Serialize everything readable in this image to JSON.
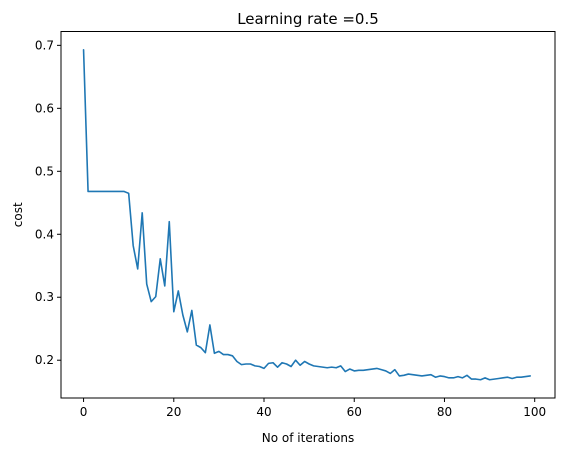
{
  "chart_data": {
    "type": "line",
    "title": "Learning rate =0.5",
    "xlabel": "No of iterations",
    "ylabel": "cost",
    "xlim": [
      -5,
      104.5
    ],
    "ylim": [
      0.14,
      0.722
    ],
    "grid": false,
    "x_ticks": [
      0,
      20,
      40,
      60,
      80,
      100
    ],
    "x_tick_labels": [
      "0",
      "20",
      "40",
      "60",
      "80",
      "100"
    ],
    "y_ticks": [
      0.2,
      0.3,
      0.4,
      0.5,
      0.6,
      0.7
    ],
    "y_tick_labels": [
      "0.2",
      "0.3",
      "0.4",
      "0.5",
      "0.6",
      "0.7"
    ],
    "colors": {
      "series": "#1f77b4"
    },
    "x": [
      0,
      1,
      2,
      3,
      4,
      5,
      6,
      7,
      8,
      9,
      10,
      11,
      12,
      13,
      14,
      15,
      16,
      17,
      18,
      19,
      20,
      21,
      22,
      23,
      24,
      25,
      26,
      27,
      28,
      29,
      30,
      31,
      32,
      33,
      34,
      35,
      36,
      37,
      38,
      39,
      40,
      41,
      42,
      43,
      44,
      45,
      46,
      47,
      48,
      49,
      50,
      51,
      52,
      53,
      54,
      55,
      56,
      57,
      58,
      59,
      60,
      61,
      62,
      63,
      64,
      65,
      66,
      67,
      68,
      69,
      70,
      71,
      72,
      73,
      74,
      75,
      76,
      77,
      78,
      79,
      80,
      81,
      82,
      83,
      84,
      85,
      86,
      87,
      88,
      89,
      90,
      91,
      92,
      93,
      94,
      95,
      96,
      97,
      98,
      99
    ],
    "series": [
      {
        "values": [
          0.693,
          0.468,
          0.468,
          0.468,
          0.468,
          0.468,
          0.468,
          0.468,
          0.468,
          0.468,
          0.465,
          0.382,
          0.345,
          0.434,
          0.321,
          0.293,
          0.301,
          0.361,
          0.318,
          0.42,
          0.277,
          0.31,
          0.272,
          0.245,
          0.279,
          0.224,
          0.22,
          0.212,
          0.256,
          0.211,
          0.214,
          0.209,
          0.209,
          0.207,
          0.198,
          0.193,
          0.194,
          0.194,
          0.191,
          0.19,
          0.187,
          0.195,
          0.196,
          0.189,
          0.196,
          0.194,
          0.19,
          0.2,
          0.192,
          0.198,
          0.194,
          0.191,
          0.19,
          0.189,
          0.188,
          0.189,
          0.188,
          0.191,
          0.182,
          0.186,
          0.183,
          0.184,
          0.184,
          0.185,
          0.186,
          0.187,
          0.185,
          0.183,
          0.179,
          0.185,
          0.175,
          0.176,
          0.178,
          0.177,
          0.176,
          0.175,
          0.176,
          0.177,
          0.173,
          0.175,
          0.174,
          0.172,
          0.172,
          0.174,
          0.172,
          0.176,
          0.17,
          0.17,
          0.169,
          0.172,
          0.169,
          0.17,
          0.171,
          0.172,
          0.173,
          0.171,
          0.173,
          0.173,
          0.174,
          0.175
        ]
      }
    ]
  }
}
